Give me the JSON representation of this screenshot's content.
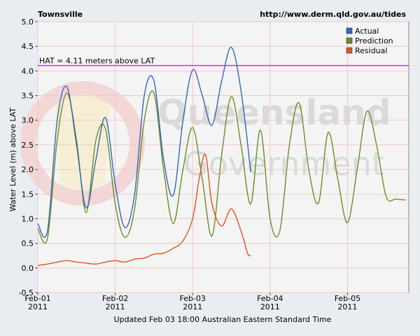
{
  "chart_data": {
    "type": "line",
    "title": "Townsville",
    "source": "http://www.derm.qld.gov.au/tides",
    "ylabel": "Water Level (m) above LAT",
    "xlabel": "Updated Feb 03 18:00 Australian Eastern Standard Time",
    "ylim": [
      -0.5,
      5.0
    ],
    "yticks": [
      "-0.5",
      "0.0",
      "0.5",
      "1.0",
      "1.5",
      "2.0",
      "2.5",
      "3.0",
      "3.5",
      "4.0",
      "4.5",
      "5.0"
    ],
    "xlim": [
      "2011-02-01 00:00",
      "2011-02-05 19:00"
    ],
    "xticks": [
      {
        "label": "Feb-01",
        "year": "2011"
      },
      {
        "label": "Feb-02",
        "year": "2011"
      },
      {
        "label": "Feb-03",
        "year": "2011"
      },
      {
        "label": "Feb-04",
        "year": "2011"
      },
      {
        "label": "Feb-05",
        "year": "2011"
      }
    ],
    "grid": true,
    "legend_position": "top-right",
    "hat": {
      "label": "HAT = 4.11 meters above LAT",
      "value": 4.11,
      "color": "#cc33cc"
    },
    "watermark": "Queensland Government",
    "series": [
      {
        "name": "Actual",
        "color": "#3366bb",
        "x": [
          "2011-02-01 00:00",
          "2011-02-01 03:00",
          "2011-02-01 06:00",
          "2011-02-01 09:00",
          "2011-02-01 12:00",
          "2011-02-01 15:00",
          "2011-02-01 18:00",
          "2011-02-01 21:00",
          "2011-02-02 00:00",
          "2011-02-02 03:00",
          "2011-02-02 06:00",
          "2011-02-02 09:00",
          "2011-02-02 12:00",
          "2011-02-02 15:00",
          "2011-02-02 18:00",
          "2011-02-02 21:00",
          "2011-02-03 00:00",
          "2011-02-03 03:00",
          "2011-02-03 06:00",
          "2011-02-03 09:00",
          "2011-02-03 12:00",
          "2011-02-03 15:00",
          "2011-02-03 18:00"
        ],
        "y": [
          0.9,
          0.75,
          3.0,
          3.68,
          2.5,
          1.22,
          2.2,
          3.05,
          1.7,
          0.82,
          1.5,
          3.5,
          3.8,
          2.2,
          1.48,
          3.0,
          4.02,
          3.5,
          2.9,
          3.8,
          4.48,
          3.6,
          1.95
        ]
      },
      {
        "name": "Prediction",
        "color": "#6b8e23",
        "x": [
          "2011-02-01 00:00",
          "2011-02-01 03:00",
          "2011-02-01 06:00",
          "2011-02-01 09:00",
          "2011-02-01 12:00",
          "2011-02-01 15:00",
          "2011-02-01 18:00",
          "2011-02-01 21:00",
          "2011-02-02 00:00",
          "2011-02-02 03:00",
          "2011-02-02 06:00",
          "2011-02-02 09:00",
          "2011-02-02 12:00",
          "2011-02-02 15:00",
          "2011-02-02 18:00",
          "2011-02-02 21:00",
          "2011-02-03 00:00",
          "2011-02-03 03:00",
          "2011-02-03 06:00",
          "2011-02-03 09:00",
          "2011-02-03 12:00",
          "2011-02-03 15:00",
          "2011-02-03 18:00",
          "2011-02-03 21:00",
          "2011-02-04 00:00",
          "2011-02-04 03:00",
          "2011-02-04 06:00",
          "2011-02-04 09:00",
          "2011-02-04 12:00",
          "2011-02-04 15:00",
          "2011-02-04 18:00",
          "2011-02-04 21:00",
          "2011-02-05 00:00",
          "2011-02-05 03:00",
          "2011-02-05 06:00",
          "2011-02-05 09:00",
          "2011-02-05 12:00",
          "2011-02-05 15:00",
          "2011-02-05 18:00"
        ],
        "y": [
          0.8,
          0.6,
          2.6,
          3.55,
          2.6,
          1.12,
          2.6,
          2.82,
          1.3,
          0.62,
          1.2,
          3.0,
          3.55,
          2.0,
          0.9,
          2.0,
          2.85,
          1.8,
          0.65,
          2.3,
          3.48,
          2.5,
          1.3,
          2.8,
          1.0,
          0.75,
          2.5,
          3.35,
          2.0,
          1.32,
          2.75,
          1.8,
          0.92,
          2.0,
          3.18,
          2.5,
          1.45,
          1.4,
          1.38
        ]
      },
      {
        "name": "Residual",
        "color": "#dd5522",
        "x": [
          "2011-02-01 00:00",
          "2011-02-01 03:00",
          "2011-02-01 06:00",
          "2011-02-01 09:00",
          "2011-02-01 12:00",
          "2011-02-01 15:00",
          "2011-02-01 18:00",
          "2011-02-01 21:00",
          "2011-02-02 00:00",
          "2011-02-02 03:00",
          "2011-02-02 06:00",
          "2011-02-02 09:00",
          "2011-02-02 12:00",
          "2011-02-02 15:00",
          "2011-02-02 18:00",
          "2011-02-02 21:00",
          "2011-02-03 00:00",
          "2011-02-03 02:00",
          "2011-02-03 04:00",
          "2011-02-03 06:00",
          "2011-02-03 09:00",
          "2011-02-03 12:00",
          "2011-02-03 15:00",
          "2011-02-03 17:00",
          "2011-02-03 18:00"
        ],
        "y": [
          0.05,
          0.08,
          0.12,
          0.15,
          0.12,
          0.1,
          0.08,
          0.12,
          0.15,
          0.12,
          0.18,
          0.2,
          0.28,
          0.3,
          0.4,
          0.55,
          1.0,
          1.8,
          2.3,
          1.3,
          0.85,
          1.2,
          0.75,
          0.3,
          0.25
        ]
      }
    ]
  }
}
